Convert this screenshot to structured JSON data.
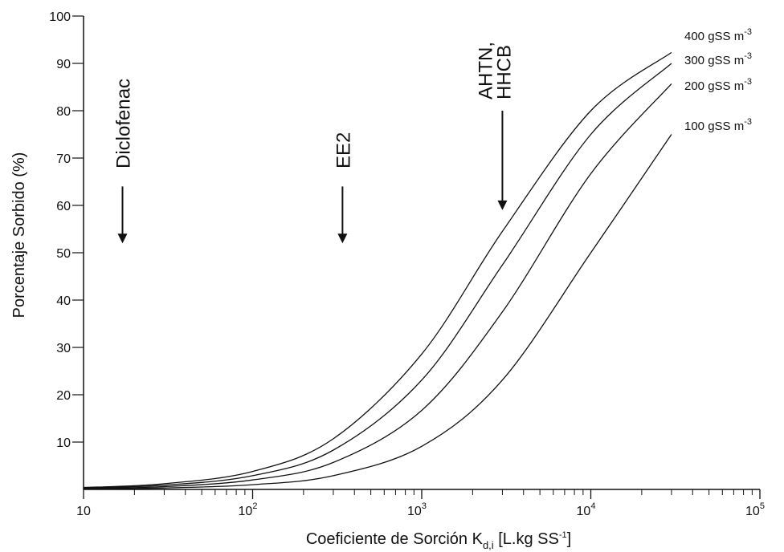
{
  "chart_data": {
    "type": "line",
    "title": "",
    "xlabel": "Coeficiente de Sorción K",
    "xlabel_subscript": "d,i",
    "xlabel_unit_start": " [L.kg SS",
    "xlabel_unit_sup": "-1",
    "xlabel_unit_end": "]",
    "ylabel": "Porcentaje Sorbido (%)",
    "x_scale": "log",
    "xlim": [
      10,
      100000
    ],
    "ylim": [
      0,
      100
    ],
    "y_ticks": [
      10,
      20,
      30,
      40,
      50,
      60,
      70,
      80,
      90,
      100
    ],
    "x_ticks": [
      {
        "base": "10",
        "exp": ""
      },
      {
        "base": "10",
        "exp": "2"
      },
      {
        "base": "10",
        "exp": "3"
      },
      {
        "base": "10",
        "exp": "4"
      },
      {
        "base": "10",
        "exp": "5"
      }
    ],
    "series": [
      {
        "name": "400 gSS m",
        "sup": "-3",
        "x": [
          10,
          30,
          100,
          300,
          1000,
          3000,
          10000,
          30000
        ],
        "y": [
          0.4,
          1.2,
          3.8,
          10.7,
          28.6,
          54.5,
          80.0,
          92.3
        ]
      },
      {
        "name": "300 gSS m",
        "sup": "-3",
        "x": [
          10,
          30,
          100,
          300,
          1000,
          3000,
          10000,
          30000
        ],
        "y": [
          0.3,
          0.9,
          2.9,
          8.3,
          23.1,
          47.4,
          75.0,
          90.0
        ]
      },
      {
        "name": "200 gSS m",
        "sup": "-3",
        "x": [
          10,
          30,
          100,
          300,
          1000,
          3000,
          10000,
          30000
        ],
        "y": [
          0.2,
          0.6,
          2.0,
          5.7,
          16.7,
          37.5,
          66.7,
          85.7
        ]
      },
      {
        "name": "100 gSS m",
        "sup": "-3",
        "x": [
          10,
          30,
          100,
          300,
          1000,
          3000,
          10000,
          30000
        ],
        "y": [
          0.1,
          0.3,
          1.0,
          2.9,
          9.1,
          23.1,
          50.0,
          75.0
        ]
      }
    ],
    "annotations": [
      {
        "text": "Diclofenac",
        "x": 17,
        "arrow_from_y": 64,
        "arrow_to_y": 52
      },
      {
        "text": "EE2",
        "x": 340,
        "arrow_from_y": 64,
        "arrow_to_y": 52
      },
      {
        "text": "AHTN,",
        "x": 3000,
        "arrow_from_y": 80,
        "arrow_to_y": 59
      },
      {
        "text": "HHCB",
        "x": 3000,
        "arrow_from_y": 80,
        "arrow_to_y": 59
      }
    ],
    "grid": false,
    "legend": "none"
  }
}
